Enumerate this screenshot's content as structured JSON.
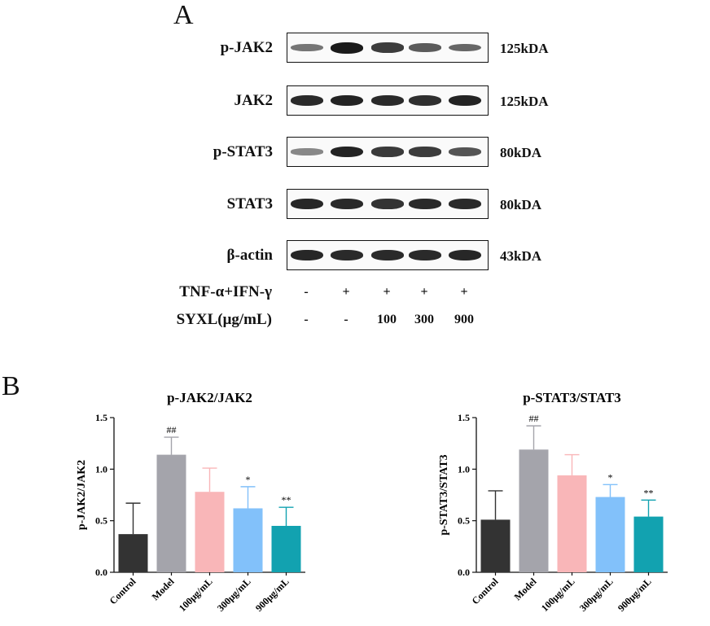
{
  "panel_a": {
    "letter": "A",
    "blots": [
      {
        "protein": "p-JAK2",
        "size": "125kDA",
        "intensity": [
          0.45,
          1.0,
          0.8,
          0.62,
          0.55
        ]
      },
      {
        "protein": "JAK2",
        "size": "125kDA",
        "intensity": [
          0.9,
          0.95,
          0.9,
          0.88,
          0.95
        ]
      },
      {
        "protein": "p-STAT3",
        "size": "80kDA",
        "intensity": [
          0.35,
          0.95,
          0.82,
          0.8,
          0.65
        ]
      },
      {
        "protein": "STAT3",
        "size": "80kDA",
        "intensity": [
          0.92,
          0.9,
          0.85,
          0.9,
          0.9
        ]
      },
      {
        "protein": "β-actin",
        "size": "43kDA",
        "intensity": [
          0.92,
          0.9,
          0.9,
          0.9,
          0.92
        ]
      }
    ],
    "conditions": [
      {
        "label": "TNF-α+IFN-γ",
        "values": [
          "-",
          "+",
          "+",
          "+",
          "+"
        ]
      },
      {
        "label": "SYXL(μg/mL)",
        "values": [
          "-",
          "-",
          "100",
          "300",
          "900"
        ]
      }
    ]
  },
  "panel_b": {
    "letter": "B"
  },
  "chart_data": [
    {
      "type": "bar",
      "title": "p-JAK2/JAK2",
      "xlabel": "",
      "ylabel": "p-JAK2/JAK2",
      "ylim": [
        0,
        1.5
      ],
      "yticks": [
        "0.0",
        "0.5",
        "1.0",
        "1.5"
      ],
      "categories": [
        "Control",
        "Model",
        "100μg/mL",
        "300μg/mL",
        "900μg/mL"
      ],
      "values": [
        0.37,
        1.14,
        0.78,
        0.62,
        0.45
      ],
      "errors": [
        0.3,
        0.17,
        0.23,
        0.21,
        0.18
      ],
      "annotations": [
        "",
        "##",
        "",
        "*",
        "**"
      ],
      "colors": [
        "#333333",
        "#a4a4ab",
        "#f9b6b8",
        "#82c1fa",
        "#12a2b0"
      ]
    },
    {
      "type": "bar",
      "title": "p-STAT3/STAT3",
      "xlabel": "",
      "ylabel": "p-STAT3/STAT3",
      "ylim": [
        0,
        1.5
      ],
      "yticks": [
        "0.0",
        "0.5",
        "1.0",
        "1.5"
      ],
      "categories": [
        "Control",
        "Model",
        "100μg/mL",
        "300μg/mL",
        "900μg/mL"
      ],
      "values": [
        0.51,
        1.19,
        0.94,
        0.73,
        0.54
      ],
      "errors": [
        0.28,
        0.23,
        0.2,
        0.12,
        0.16
      ],
      "annotations": [
        "",
        "##",
        "",
        "*",
        "**"
      ],
      "colors": [
        "#333333",
        "#a4a4ab",
        "#f9b6b8",
        "#82c1fa",
        "#12a2b0"
      ]
    }
  ]
}
